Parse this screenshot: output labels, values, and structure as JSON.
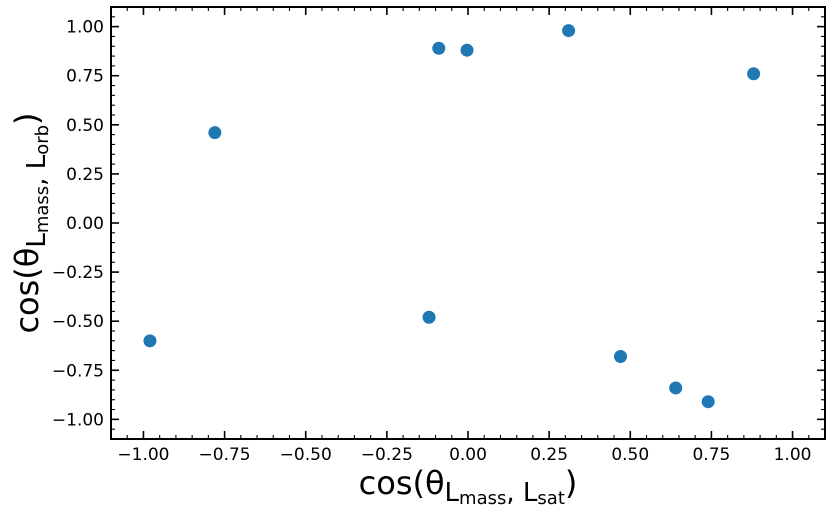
{
  "chart_data": {
    "type": "scatter",
    "xlabel": {
      "prefix": "cos(θ",
      "sub1_main": "L",
      "sub1_sub": "mass",
      "sep": ", ",
      "sub2_main": "L",
      "sub2_sub": "sat",
      "suffix": ")"
    },
    "ylabel": {
      "prefix": "cos(θ",
      "sub1_main": "L",
      "sub1_sub": "mass",
      "sep": ", ",
      "sub2_main": "L",
      "sub2_sub": "orb",
      "suffix": ")"
    },
    "xlim": [
      -1.1,
      1.1
    ],
    "ylim": [
      -1.1,
      1.1
    ],
    "xticks": [
      -1.0,
      -0.75,
      -0.5,
      -0.25,
      0.0,
      0.25,
      0.5,
      0.75,
      1.0
    ],
    "xtick_labels": [
      "−1.00",
      "−0.75",
      "−0.50",
      "−0.25",
      "0.00",
      "0.25",
      "0.50",
      "0.75",
      "1.00"
    ],
    "yticks": [
      -1.0,
      -0.75,
      -0.5,
      -0.25,
      0.0,
      0.25,
      0.5,
      0.75,
      1.0
    ],
    "ytick_labels": [
      "−1.00",
      "−0.75",
      "−0.50",
      "−0.25",
      "0.00",
      "0.25",
      "0.50",
      "0.75",
      "1.00"
    ],
    "grid": false,
    "marker_color": "#1f77b4",
    "points": [
      {
        "x": -0.98,
        "y": -0.6
      },
      {
        "x": -0.78,
        "y": 0.46
      },
      {
        "x": -0.12,
        "y": -0.48
      },
      {
        "x": -0.09,
        "y": 0.89
      },
      {
        "x": -0.003,
        "y": 0.88
      },
      {
        "x": 0.31,
        "y": 0.98
      },
      {
        "x": 0.47,
        "y": -0.68
      },
      {
        "x": 0.64,
        "y": -0.84
      },
      {
        "x": 0.74,
        "y": -0.91
      },
      {
        "x": 0.88,
        "y": 0.76
      }
    ]
  }
}
